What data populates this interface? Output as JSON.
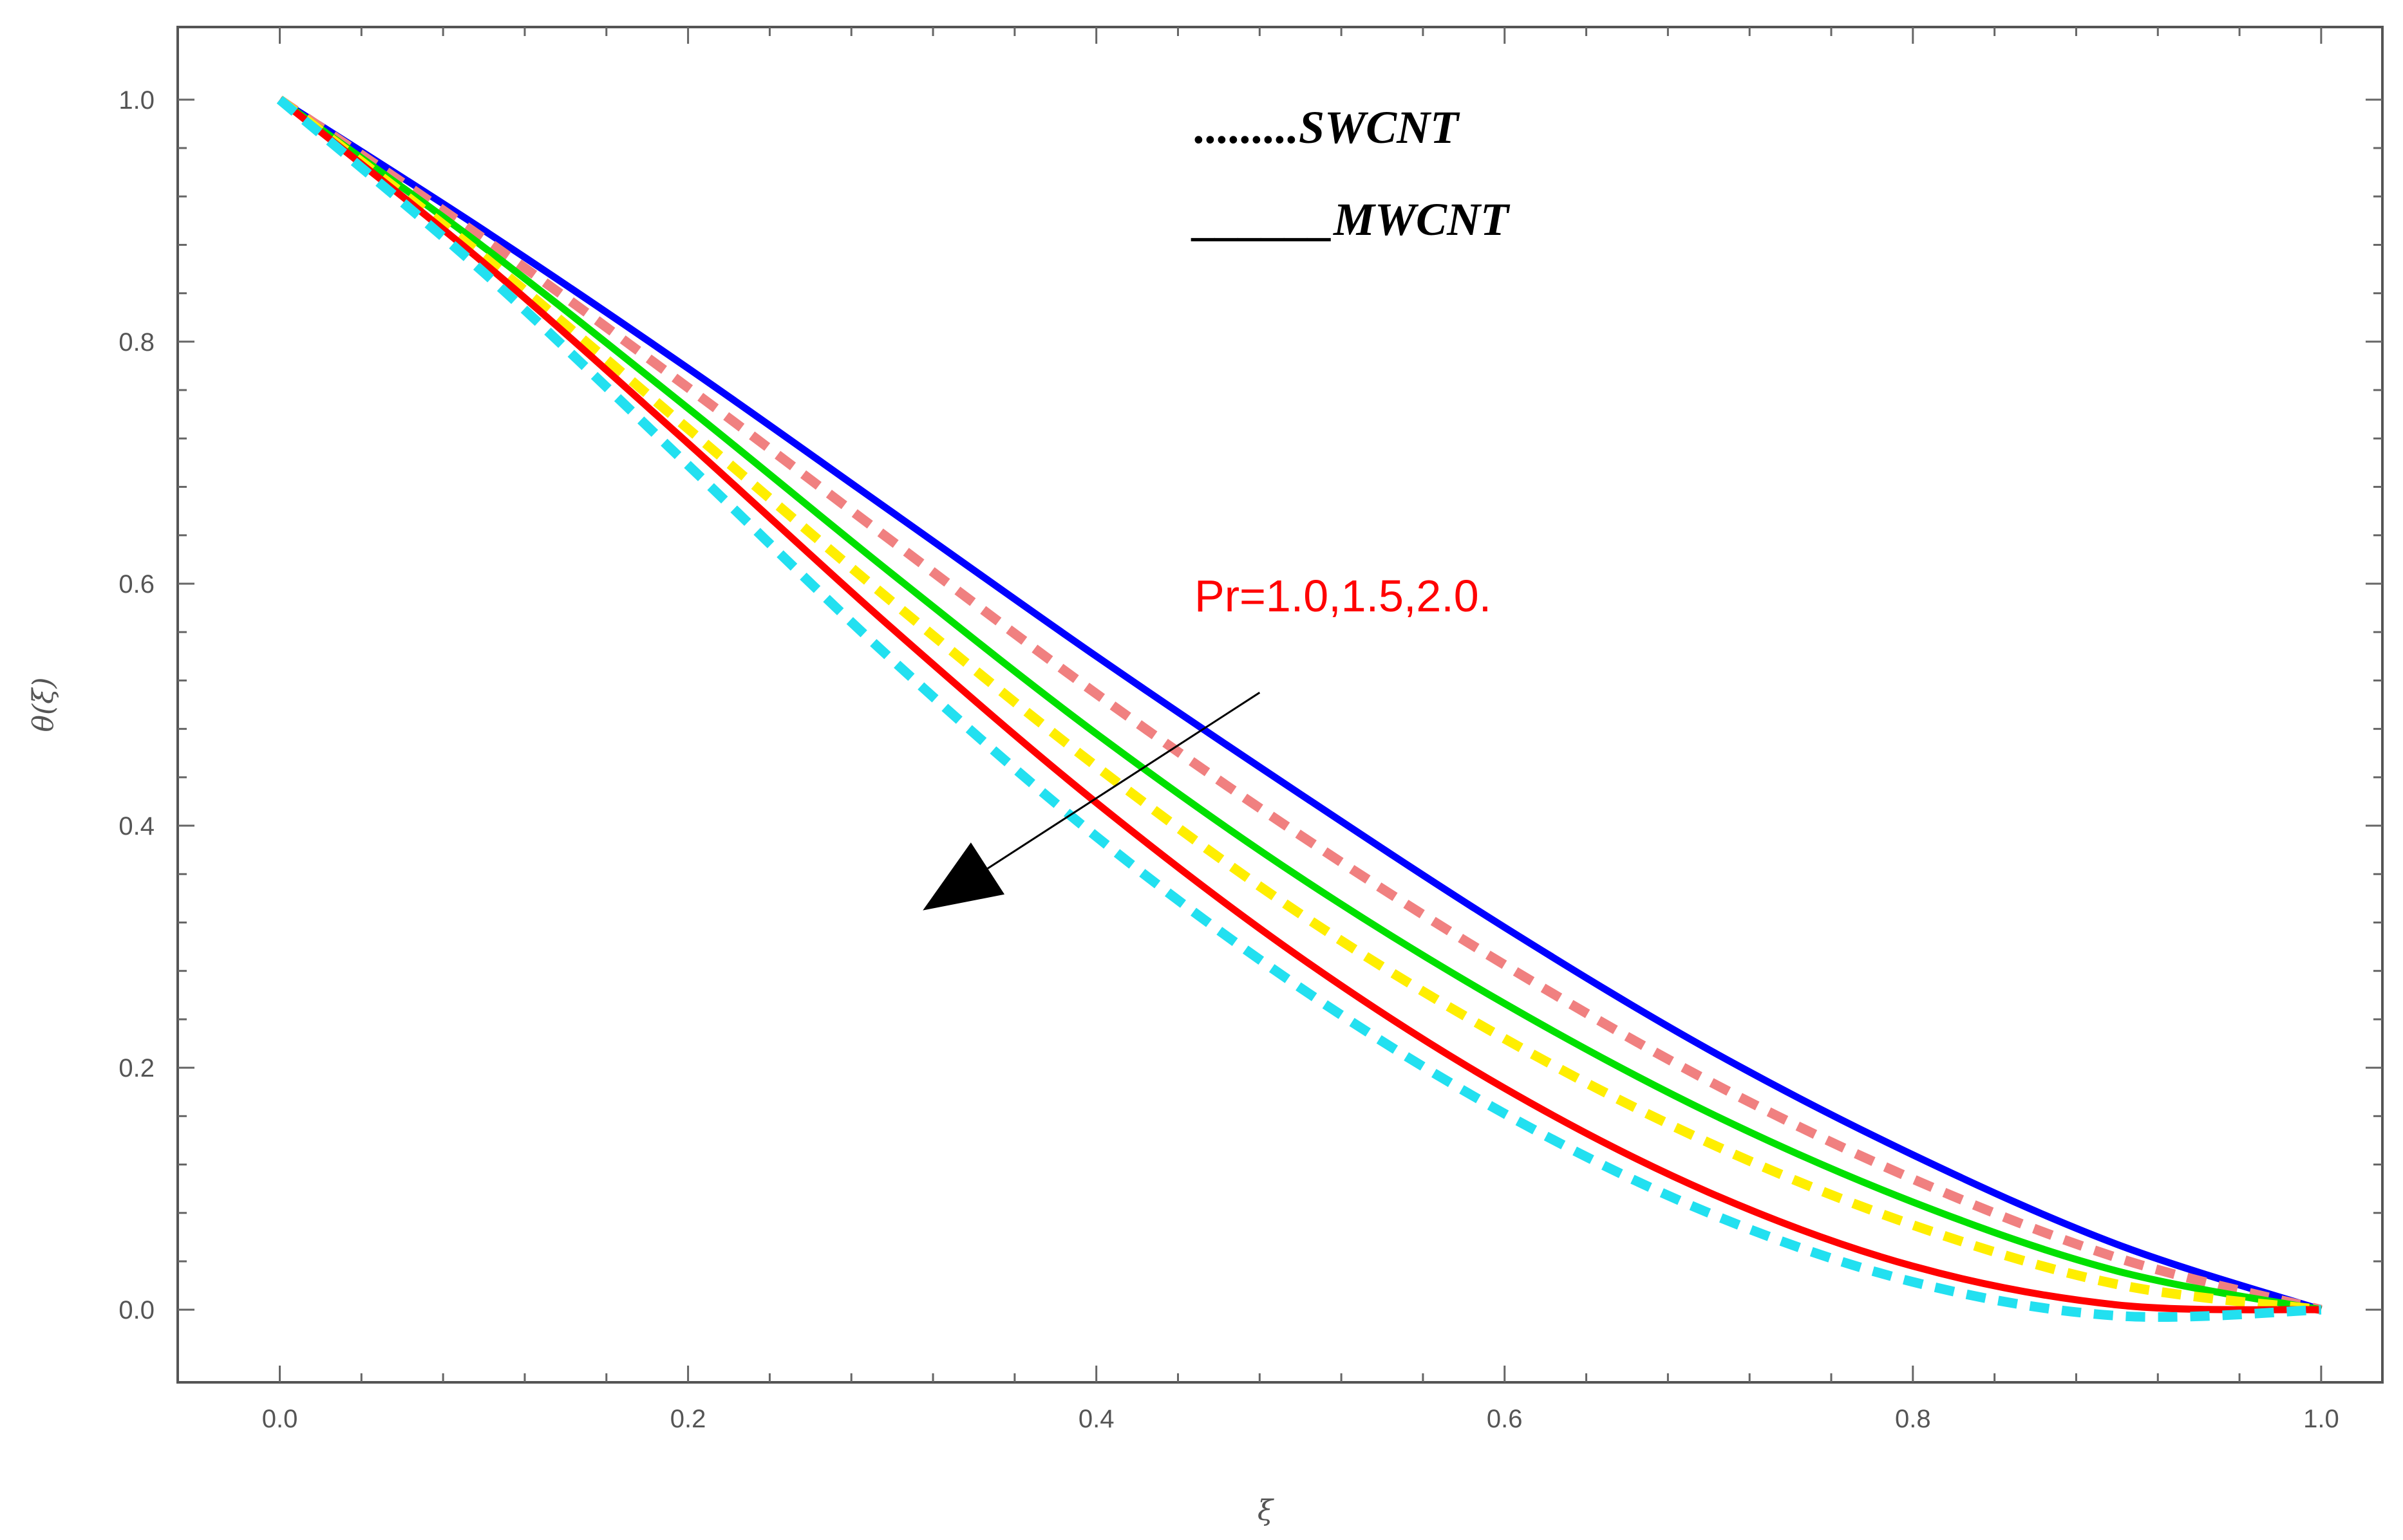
{
  "chart_data": {
    "type": "line",
    "title": "",
    "xlabel": "ξ",
    "ylabel": "θ(ξ)",
    "xlim": [
      -0.05,
      1.03
    ],
    "ylim": [
      -0.06,
      1.06
    ],
    "xticks": [
      0.0,
      0.2,
      0.4,
      0.6,
      0.8,
      1.0
    ],
    "yticks": [
      0.0,
      0.2,
      0.4,
      0.6,
      0.8,
      1.0
    ],
    "xtick_labels": [
      "0.0",
      "0.2",
      "0.4",
      "0.6",
      "0.8",
      "1.0"
    ],
    "ytick_labels": [
      "0.0",
      "0.2",
      "0.4",
      "0.6",
      "0.8",
      "1.0"
    ],
    "grid": false,
    "x": [
      0.0,
      0.1,
      0.2,
      0.3,
      0.4,
      0.5,
      0.6,
      0.7,
      0.8,
      0.9,
      1.0
    ],
    "series": [
      {
        "name": "MWCNT Pr=1.0",
        "style": "solid",
        "color": "#0000ff",
        "values": [
          1.0,
          0.892,
          0.778,
          0.659,
          0.54,
          0.426,
          0.316,
          0.215,
          0.128,
          0.054,
          0.0
        ]
      },
      {
        "name": "SWCNT Pr=1.0",
        "style": "dashed",
        "color": "#f08080",
        "values": [
          1.0,
          0.885,
          0.762,
          0.635,
          0.509,
          0.392,
          0.285,
          0.189,
          0.108,
          0.043,
          0.0
        ]
      },
      {
        "name": "MWCNT Pr=1.5",
        "style": "solid",
        "color": "#00e000",
        "values": [
          1.0,
          0.878,
          0.745,
          0.608,
          0.476,
          0.357,
          0.253,
          0.163,
          0.089,
          0.032,
          0.0
        ]
      },
      {
        "name": "SWCNT Pr=1.5",
        "style": "dashed",
        "color": "#ffee00",
        "values": [
          1.0,
          0.87,
          0.728,
          0.585,
          0.449,
          0.327,
          0.224,
          0.138,
          0.07,
          0.021,
          0.0
        ]
      },
      {
        "name": "MWCNT Pr=2.0",
        "style": "solid",
        "color": "#ff0000",
        "values": [
          1.0,
          0.865,
          0.716,
          0.563,
          0.419,
          0.291,
          0.183,
          0.097,
          0.036,
          0.004,
          0.0
        ]
      },
      {
        "name": "SWCNT Pr=2.0",
        "style": "dashed",
        "color": "#22e0f0",
        "values": [
          1.0,
          0.857,
          0.698,
          0.537,
          0.391,
          0.266,
          0.162,
          0.08,
          0.023,
          -0.005,
          0.0
        ]
      }
    ],
    "legend": [
      {
        "label": ".........SWCNT",
        "style": "dotted"
      },
      {
        "label": "______MWCNT",
        "style": "solid"
      }
    ],
    "legend_position": "top-right",
    "annotation": {
      "text": "Pr=1.0,1.5,2.0.",
      "color": "#ff0000",
      "arrow_from": [
        0.48,
        0.51
      ],
      "arrow_to": [
        0.315,
        0.33
      ]
    }
  }
}
